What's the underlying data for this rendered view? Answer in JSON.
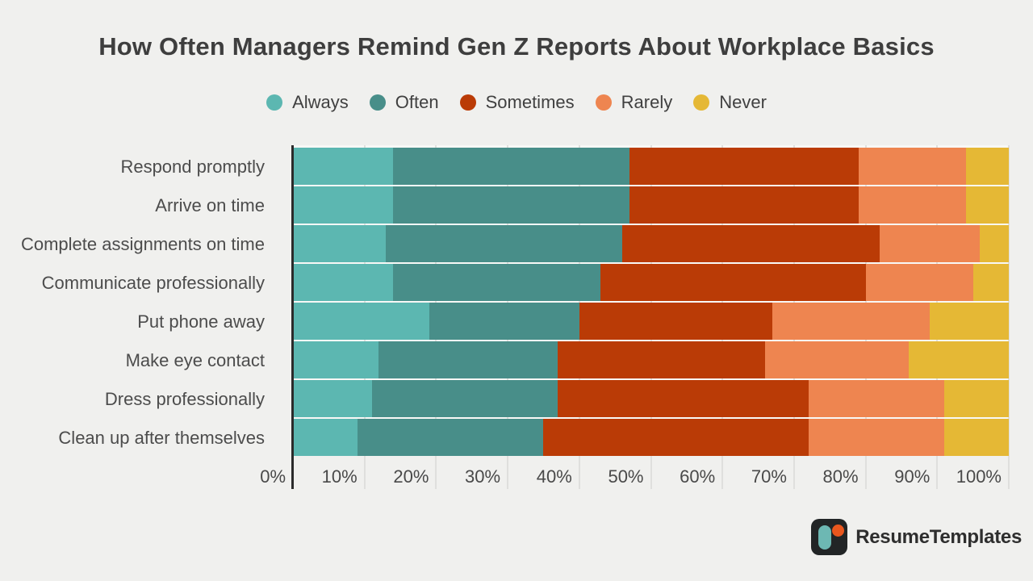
{
  "title": "How Often Managers Remind Gen Z Reports About Workplace Basics",
  "legend": [
    {
      "label": "Always",
      "color": "#5cb7b1"
    },
    {
      "label": "Often",
      "color": "#488e89"
    },
    {
      "label": "Sometimes",
      "color": "#ba3b06"
    },
    {
      "label": "Rarely",
      "color": "#ee8550"
    },
    {
      "label": "Never",
      "color": "#e5b835"
    }
  ],
  "chart_data": {
    "type": "bar",
    "stacked": true,
    "orientation": "horizontal",
    "unit": "percent",
    "title": "How Often Managers Remind Gen Z Reports About Workplace Basics",
    "categories": [
      "Respond promptly",
      "Arrive on time",
      "Complete assignments on time",
      "Communicate professionally",
      "Put phone away",
      "Make eye contact",
      "Dress professionally",
      "Clean up after themselves"
    ],
    "series": [
      {
        "name": "Always",
        "color": "#5cb7b1",
        "values": [
          14,
          14,
          13,
          14,
          19,
          12,
          11,
          9
        ]
      },
      {
        "name": "Often",
        "color": "#488e89",
        "values": [
          33,
          33,
          33,
          29,
          21,
          25,
          26,
          26
        ]
      },
      {
        "name": "Sometimes",
        "color": "#ba3b06",
        "values": [
          32,
          32,
          36,
          37,
          27,
          29,
          35,
          37
        ]
      },
      {
        "name": "Rarely",
        "color": "#ee8550",
        "values": [
          15,
          15,
          14,
          15,
          22,
          20,
          19,
          19
        ]
      },
      {
        "name": "Never",
        "color": "#e5b835",
        "values": [
          6,
          6,
          4,
          5,
          11,
          14,
          9,
          9
        ]
      }
    ],
    "x_ticks": [
      "0%",
      "10%",
      "20%",
      "30%",
      "40%",
      "50%",
      "60%",
      "70%",
      "80%",
      "90%",
      "100%"
    ],
    "xlim": [
      0,
      100
    ],
    "xlabel": "",
    "ylabel": "",
    "grid": "vertical",
    "legend_position": "top"
  },
  "footer": {
    "brand": "ResumeTemplates"
  }
}
